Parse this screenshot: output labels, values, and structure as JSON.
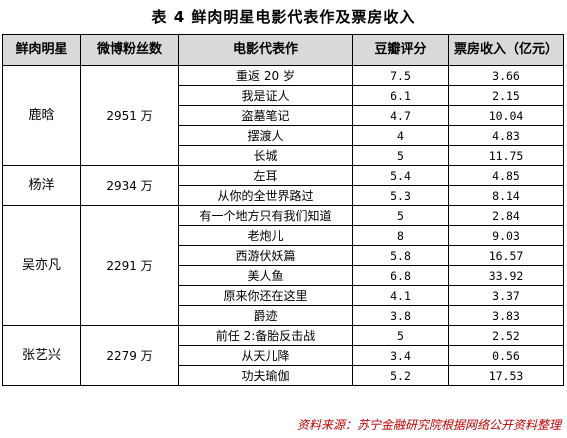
{
  "title": "表 4   鲜肉明星电影代表作及票房收入",
  "headers": [
    "鲜肉明星",
    "微博粉丝数",
    "电影代表作",
    "豆瓣评分",
    "票房收入（亿元）"
  ],
  "stars": [
    {
      "name": "鹿晗",
      "fans": "2951 万",
      "films": [
        {
          "title": "重返 20 岁",
          "rating": "7.5",
          "box": "3.66"
        },
        {
          "title": "我是证人",
          "rating": "6.1",
          "box": "2.15"
        },
        {
          "title": "盗墓笔记",
          "rating": "4.7",
          "box": "10.04"
        },
        {
          "title": "摆渡人",
          "rating": "4",
          "box": "4.83"
        },
        {
          "title": "长城",
          "rating": "5",
          "box": "11.75"
        }
      ]
    },
    {
      "name": "杨洋",
      "fans": "2934 万",
      "films": [
        {
          "title": "左耳",
          "rating": "5.4",
          "box": "4.85"
        },
        {
          "title": "从你的全世界路过",
          "rating": "5.3",
          "box": "8.14"
        }
      ]
    },
    {
      "name": "吴亦凡",
      "fans": "2291 万",
      "films": [
        {
          "title": "有一个地方只有我们知道",
          "rating": "5",
          "box": "2.84"
        },
        {
          "title": "老炮儿",
          "rating": "8",
          "box": "9.03"
        },
        {
          "title": "西游伏妖篇",
          "rating": "5.8",
          "box": "16.57"
        },
        {
          "title": "美人鱼",
          "rating": "6.8",
          "box": "33.92"
        },
        {
          "title": "原来你还在这里",
          "rating": "4.1",
          "box": "3.37"
        },
        {
          "title": "爵迹",
          "rating": "3.8",
          "box": "3.83"
        }
      ]
    },
    {
      "name": "张艺兴",
      "fans": "2279 万",
      "films": [
        {
          "title": "前任 2:备胎反击战",
          "rating": "5",
          "box": "2.52"
        },
        {
          "title": "从天儿降",
          "rating": "3.4",
          "box": "0.56"
        },
        {
          "title": "功夫瑜伽",
          "rating": "5.2",
          "box": "17.53"
        }
      ]
    }
  ],
  "source": "资料来源：苏宁金融研究院根据网络公开资料整理",
  "colors": {
    "header_bg": "#d9d9d9",
    "source_text": "#c00000",
    "border": "#000000"
  }
}
